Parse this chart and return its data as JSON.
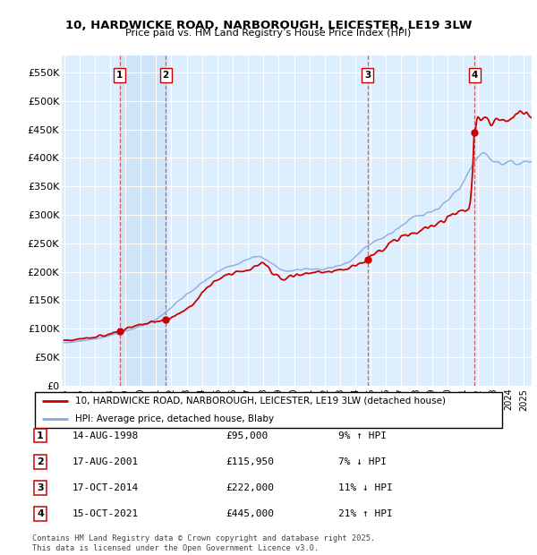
{
  "title1": "10, HARDWICKE ROAD, NARBOROUGH, LEICESTER, LE19 3LW",
  "title2": "Price paid vs. HM Land Registry’s House Price Index (HPI)",
  "ylim": [
    0,
    580000
  ],
  "yticks": [
    0,
    50000,
    100000,
    150000,
    200000,
    250000,
    300000,
    350000,
    400000,
    450000,
    500000,
    550000
  ],
  "ytick_labels": [
    "£0",
    "£50K",
    "£100K",
    "£150K",
    "£200K",
    "£250K",
    "£300K",
    "£350K",
    "£400K",
    "£450K",
    "£500K",
    "£550K"
  ],
  "purchase_t": [
    1998.625,
    2001.625,
    2014.792,
    2021.792
  ],
  "purchase_prices": [
    95000,
    115950,
    222000,
    445000
  ],
  "purchase_labels": [
    "1",
    "2",
    "3",
    "4"
  ],
  "purchase_pct": [
    "9% ↑ HPI",
    "7% ↓ HPI",
    "11% ↓ HPI",
    "21% ↑ HPI"
  ],
  "purchase_date_strs": [
    "14-AUG-1998",
    "17-AUG-2001",
    "17-OCT-2014",
    "15-OCT-2021"
  ],
  "purchase_price_strs": [
    "£95,000",
    "£115,950",
    "£222,000",
    "£445,000"
  ],
  "legend_line1": "10, HARDWICKE ROAD, NARBOROUGH, LEICESTER, LE19 3LW (detached house)",
  "legend_line2": "HPI: Average price, detached house, Blaby",
  "footer": "Contains HM Land Registry data © Crown copyright and database right 2025.\nThis data is licensed under the Open Government Licence v3.0.",
  "line_color_red": "#cc0000",
  "line_color_blue": "#88aadd",
  "shade_color": "#d0e4f7",
  "bg_color": "#ddeeff",
  "grid_color": "#ffffff",
  "marker_box_color": "#cc0000"
}
